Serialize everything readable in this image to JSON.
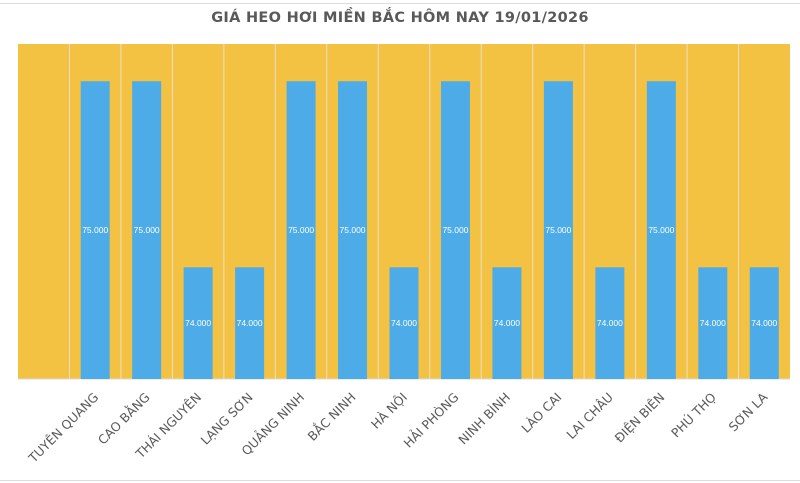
{
  "chart_data": {
    "type": "bar",
    "title": "GIÁ HEO HƠI MIỀN BẮC HÔM NAY 19/01/2026",
    "xlabel": "",
    "ylabel": "",
    "categories": [
      "TUYÊN QUANG",
      "CAO BẰNG",
      "THÁI NGUYÊN",
      "LẠNG SƠN",
      "QUẢNG NINH",
      "BẮC NINH",
      "HÀ NỘI",
      "HẢI PHÒNG",
      "NINH BÌNH",
      "LÀO CAI",
      "LAI CHÂU",
      "ĐIỆN BIÊN",
      "PHÚ THỌ",
      "SƠN LA"
    ],
    "values": [
      75000,
      75000,
      74000,
      74000,
      75000,
      75000,
      74000,
      75000,
      74000,
      75000,
      74000,
      75000,
      74000,
      74000
    ],
    "data_labels": [
      "75.000",
      "75.000",
      "74.000",
      "74.000",
      "75.000",
      "75.000",
      "74.000",
      "75.000",
      "74.000",
      "75.000",
      "74.000",
      "75.000",
      "74.000",
      "74.000"
    ],
    "ylim": [
      73400,
      75200
    ],
    "grid": "vertical",
    "legend": "none",
    "colors": {
      "bar": "#4DABE8",
      "plot_background": "#F4C242",
      "gridline": "#E8E0C8",
      "title": "#595959",
      "label": "#595959"
    }
  }
}
